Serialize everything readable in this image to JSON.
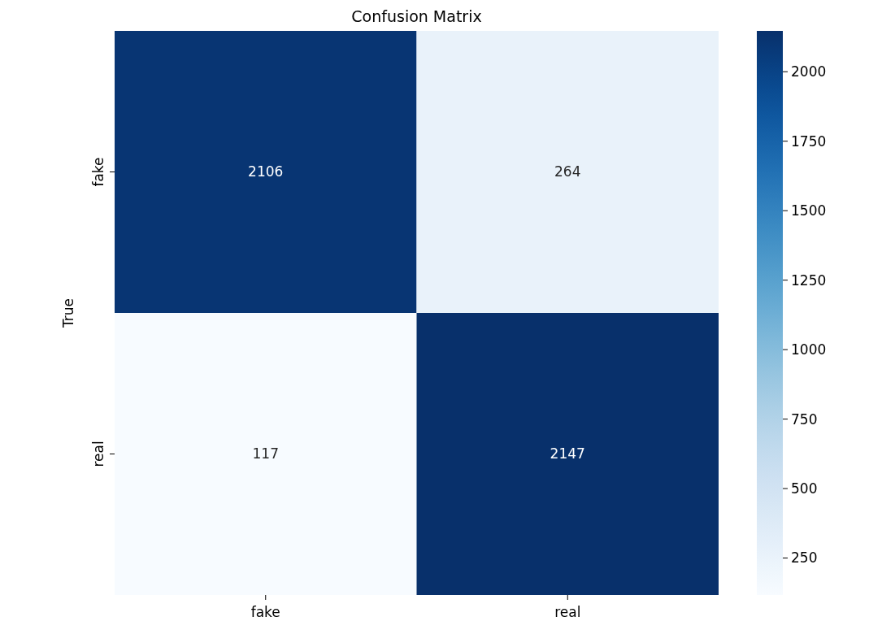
{
  "chart_data": {
    "type": "heatmap",
    "title": "Confusion Matrix",
    "ylabel": "True",
    "categories": [
      "fake",
      "real"
    ],
    "y_categories": [
      "fake",
      "real"
    ],
    "cells": [
      [
        2106,
        264
      ],
      [
        117,
        2147
      ]
    ],
    "clim": [
      117,
      2147
    ],
    "cticks": [
      250,
      500,
      750,
      1000,
      1250,
      1500,
      1750,
      2000
    ],
    "data_labels": true
  }
}
